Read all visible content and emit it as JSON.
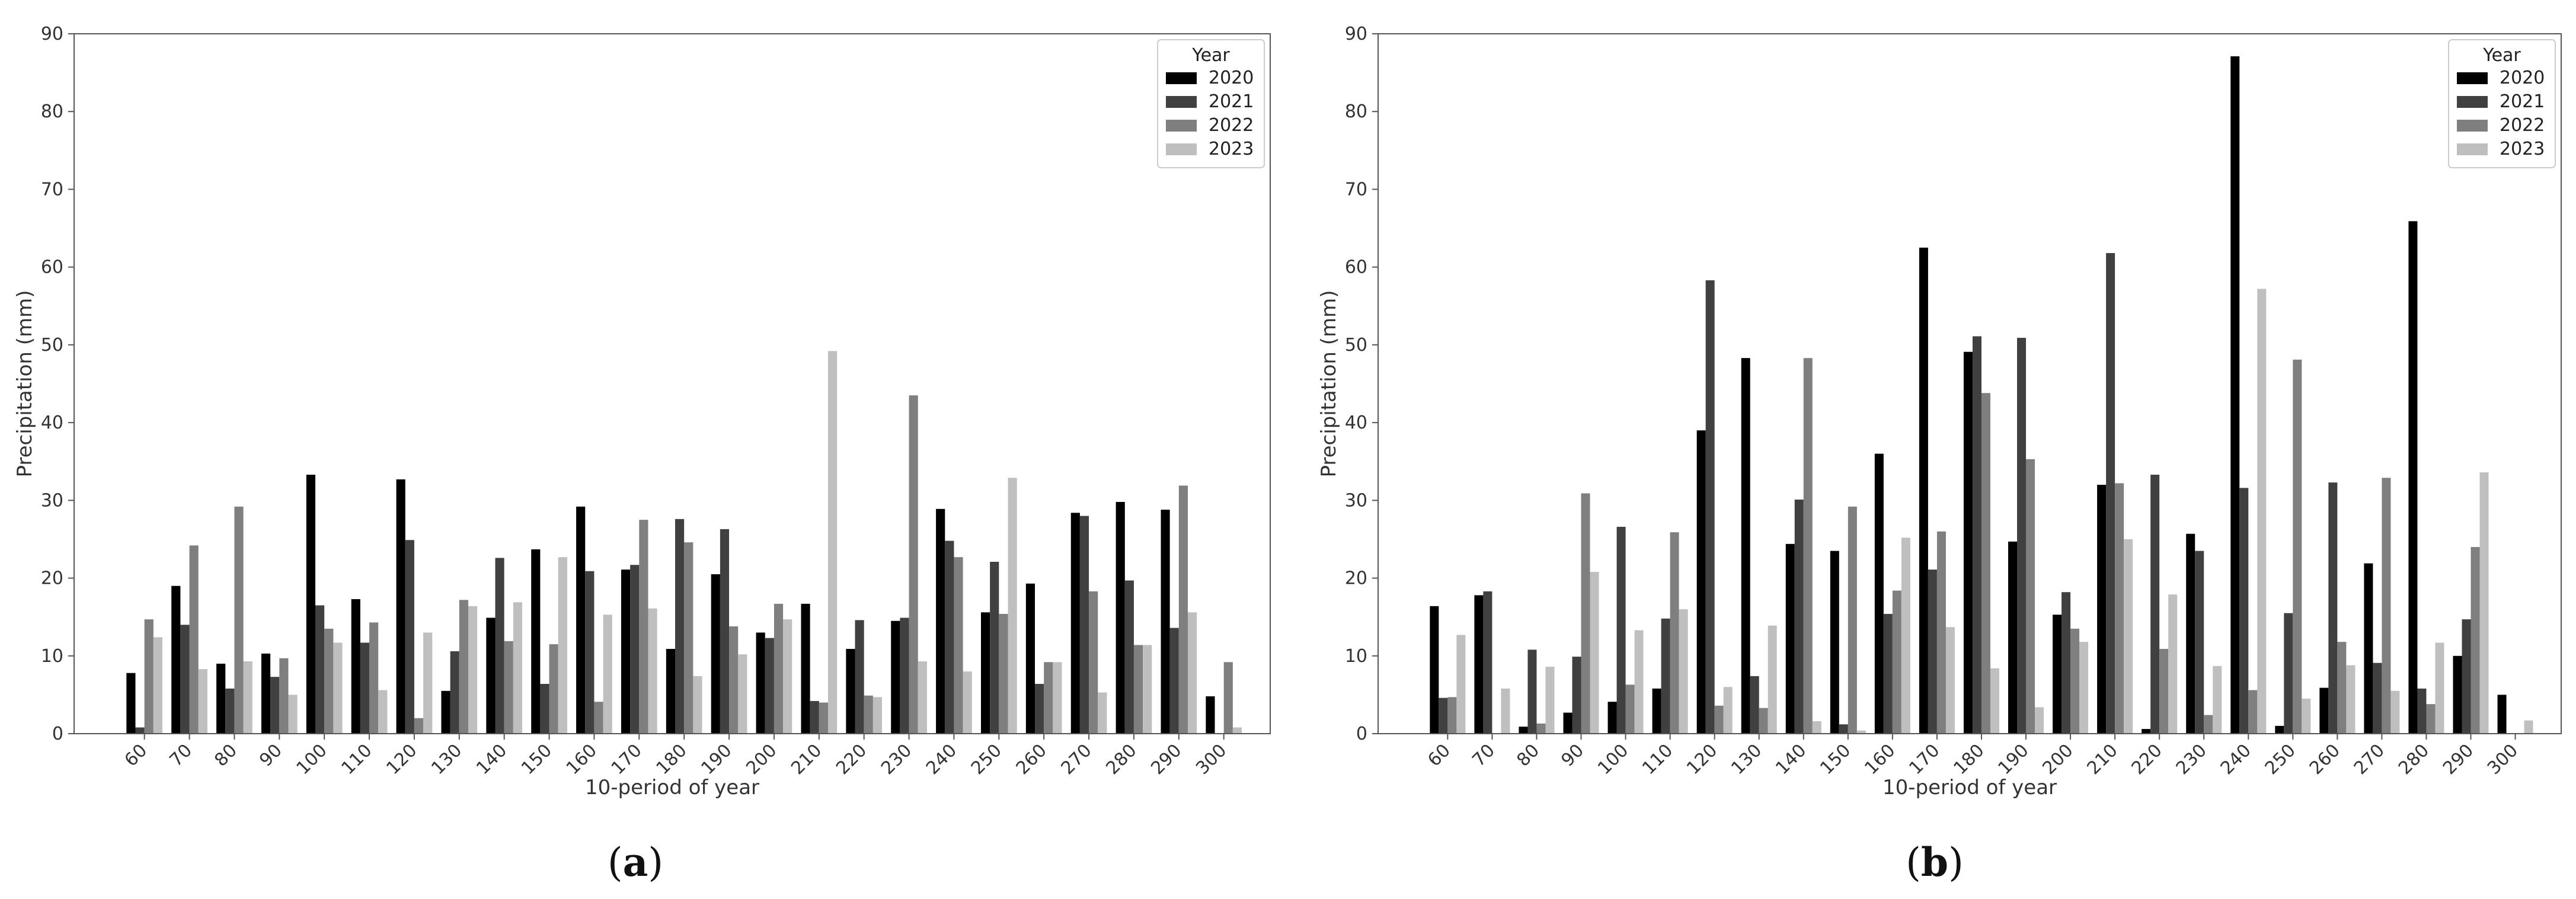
{
  "chart_data": [
    {
      "type": "bar",
      "panel_label": "a",
      "xlabel": "10-period of year",
      "ylabel": "Precipitation (mm)",
      "ylim": [
        0,
        90
      ],
      "yticks": [
        0,
        10,
        20,
        30,
        40,
        50,
        60,
        70,
        80,
        90
      ],
      "categories": [
        "60",
        "70",
        "80",
        "90",
        "100",
        "110",
        "120",
        "130",
        "140",
        "150",
        "160",
        "170",
        "180",
        "190",
        "200",
        "210",
        "220",
        "230",
        "240",
        "250",
        "260",
        "270",
        "280",
        "290",
        "300"
      ],
      "legend": {
        "title": "Year",
        "placement": "top-right"
      },
      "grid": false,
      "series": [
        {
          "name": "2020",
          "color": "#000000",
          "values": [
            7.8,
            19.0,
            9.0,
            10.3,
            33.3,
            17.3,
            32.7,
            5.5,
            14.9,
            23.7,
            29.2,
            21.1,
            10.9,
            20.5,
            13.0,
            16.7,
            10.9,
            14.5,
            28.9,
            15.6,
            19.3,
            28.4,
            29.8,
            28.8,
            4.8
          ]
        },
        {
          "name": "2021",
          "color": "#404040",
          "values": [
            0.8,
            14.0,
            5.8,
            7.3,
            16.5,
            11.7,
            24.9,
            10.6,
            22.6,
            6.4,
            20.9,
            21.7,
            27.6,
            26.3,
            12.3,
            4.2,
            14.6,
            14.9,
            24.8,
            22.1,
            6.4,
            28.0,
            19.7,
            13.6,
            0.0
          ]
        },
        {
          "name": "2022",
          "color": "#7f7f7f",
          "values": [
            14.7,
            24.2,
            29.2,
            9.7,
            13.5,
            14.3,
            2.0,
            17.2,
            11.9,
            11.5,
            4.1,
            27.5,
            24.6,
            13.8,
            16.7,
            4.0,
            4.9,
            43.5,
            22.7,
            15.4,
            9.2,
            18.3,
            11.4,
            31.9,
            9.2
          ]
        },
        {
          "name": "2023",
          "color": "#bfbfbf",
          "values": [
            12.4,
            8.3,
            9.3,
            5.0,
            11.7,
            5.6,
            13.0,
            16.4,
            16.9,
            22.7,
            15.3,
            16.1,
            7.4,
            10.2,
            14.7,
            49.2,
            4.7,
            9.3,
            8.0,
            32.9,
            9.2,
            5.3,
            11.4,
            15.6,
            0.8
          ]
        }
      ]
    },
    {
      "type": "bar",
      "panel_label": "b",
      "xlabel": "10-period of year",
      "ylabel": "Precipitation (mm)",
      "ylim": [
        0,
        90
      ],
      "yticks": [
        0,
        10,
        20,
        30,
        40,
        50,
        60,
        70,
        80,
        90
      ],
      "categories": [
        "60",
        "70",
        "80",
        "90",
        "100",
        "110",
        "120",
        "130",
        "140",
        "150",
        "160",
        "170",
        "180",
        "190",
        "200",
        "210",
        "220",
        "230",
        "240",
        "250",
        "260",
        "270",
        "280",
        "290",
        "300"
      ],
      "legend": {
        "title": "Year",
        "placement": "top-right"
      },
      "grid": false,
      "series": [
        {
          "name": "2020",
          "color": "#000000",
          "values": [
            16.4,
            17.8,
            0.9,
            2.7,
            4.1,
            5.8,
            39.0,
            48.3,
            24.4,
            23.5,
            36.0,
            62.5,
            49.1,
            24.7,
            15.3,
            32.0,
            0.6,
            25.7,
            87.1,
            1.0,
            5.9,
            21.9,
            65.9,
            10.0,
            5.0
          ]
        },
        {
          "name": "2021",
          "color": "#404040",
          "values": [
            4.6,
            18.3,
            10.8,
            9.9,
            26.6,
            14.8,
            58.3,
            7.4,
            30.1,
            1.2,
            15.4,
            21.1,
            51.1,
            50.9,
            18.2,
            61.8,
            33.3,
            23.5,
            31.6,
            15.5,
            32.3,
            9.1,
            5.8,
            14.7,
            0.0
          ]
        },
        {
          "name": "2022",
          "color": "#7f7f7f",
          "values": [
            4.7,
            0.0,
            1.3,
            30.9,
            6.3,
            25.9,
            3.6,
            3.3,
            48.3,
            29.2,
            18.4,
            26.0,
            43.8,
            35.3,
            13.5,
            32.2,
            10.9,
            2.4,
            5.6,
            48.1,
            11.8,
            32.9,
            3.8,
            24.0,
            0.0
          ]
        },
        {
          "name": "2023",
          "color": "#bfbfbf",
          "values": [
            12.7,
            5.8,
            8.6,
            20.8,
            13.3,
            16.0,
            6.0,
            13.9,
            1.6,
            0.4,
            25.2,
            13.7,
            8.4,
            3.4,
            11.8,
            25.0,
            17.9,
            8.7,
            57.2,
            4.5,
            8.8,
            5.5,
            11.7,
            33.6,
            1.7
          ]
        }
      ]
    }
  ]
}
